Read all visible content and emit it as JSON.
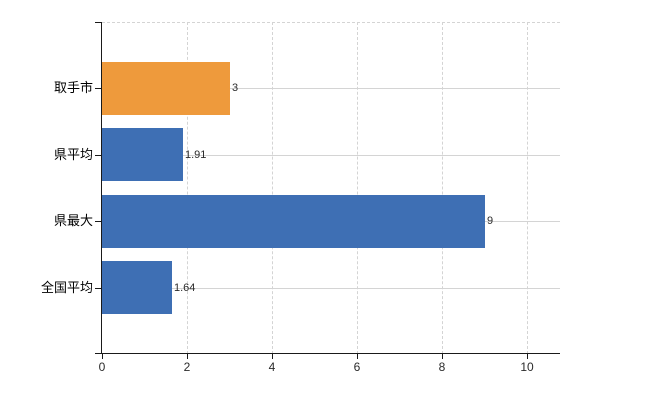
{
  "chart_data": {
    "type": "bar",
    "orientation": "horizontal",
    "title": "",
    "xlabel": "",
    "ylabel": "",
    "categories": [
      "取手市",
      "県平均",
      "県最大",
      "全国平均"
    ],
    "values": [
      3,
      1.91,
      9,
      1.64
    ],
    "value_labels": [
      "3",
      "1.91",
      "9",
      "1.64"
    ],
    "bar_colors": [
      "#ee9a3c",
      "#3e6fb4",
      "#3e6fb4",
      "#3e6fb4"
    ],
    "highlight_color": "#ee9a3c",
    "base_color": "#3e6fb4",
    "x_ticks": [
      0,
      2,
      4,
      6,
      8,
      10
    ],
    "x_tick_labels": [
      "0",
      "2",
      "4",
      "6",
      "8",
      "10"
    ],
    "xlim": [
      0,
      10.78
    ],
    "grid": true,
    "gridline_color": "#d4d4d4",
    "axis_color": "#1a1a1a",
    "legend": false,
    "background_color": "#ffffff"
  }
}
